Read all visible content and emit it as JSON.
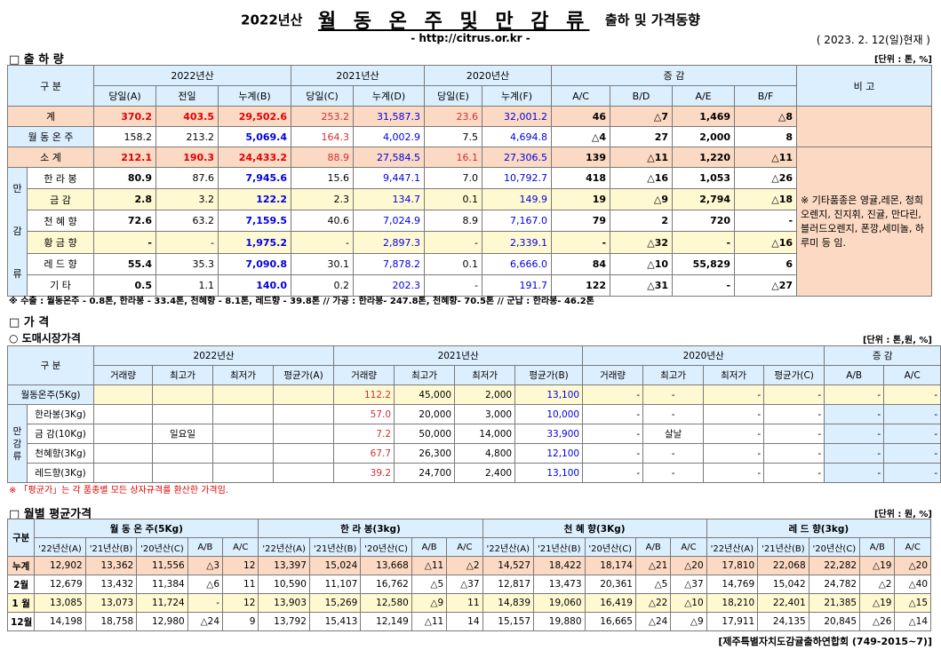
{
  "header": {
    "year": "2022년산",
    "title": "월 동 온 주 및 만 감 류",
    "subtitle": "출하 및 가격동향",
    "url": "- http://citrus.or.kr -",
    "date": "( 2023. 2. 12(일)현재 )"
  },
  "shipment": {
    "section_title": "□ 출 하 량",
    "unit": "[단위 : 톤, %]",
    "head": {
      "gubun": "구 분",
      "y2022": "2022년산",
      "y2021": "2021년산",
      "y2020": "2020년산",
      "change": "증 감",
      "remark": "비 고",
      "cols": [
        "당일(A)",
        "전일",
        "누계(B)",
        "당일(C)",
        "누계(D)",
        "당일(E)",
        "누계(F)",
        "A/C",
        "B/D",
        "A/E",
        "B/F"
      ]
    },
    "rows": [
      {
        "label": "계",
        "v": [
          "370.2",
          "403.5",
          "29,502.6",
          "253.2",
          "31,587.3",
          "23.6",
          "32,001.2",
          "46",
          "△7",
          "1,469",
          "△8"
        ]
      },
      {
        "label": "월 동 온 주",
        "v": [
          "158.2",
          "213.2",
          "5,069.4",
          "164.3",
          "4,002.9",
          "7.5",
          "4,694.8",
          "△4",
          "27",
          "2,000",
          "8"
        ]
      },
      {
        "label": "소 계",
        "v": [
          "212.1",
          "190.3",
          "24,433.2",
          "88.9",
          "27,584.5",
          "16.1",
          "27,306.5",
          "139",
          "△11",
          "1,220",
          "△11"
        ]
      },
      {
        "label": "한 라 봉",
        "v": [
          "80.9",
          "87.6",
          "7,945.6",
          "15.6",
          "9,447.1",
          "7.0",
          "10,792.7",
          "418",
          "△16",
          "1,053",
          "△26"
        ]
      },
      {
        "label": "금 감",
        "v": [
          "2.8",
          "3.2",
          "122.2",
          "2.3",
          "134.7",
          "0.1",
          "149.9",
          "19",
          "△9",
          "2,794",
          "△18"
        ]
      },
      {
        "label": "천 혜 향",
        "v": [
          "72.6",
          "63.2",
          "7,159.5",
          "40.6",
          "7,024.9",
          "8.9",
          "7,167.0",
          "79",
          "2",
          "720",
          "-"
        ]
      },
      {
        "label": "황 금 향",
        "v": [
          "-",
          "-",
          "1,975.2",
          "-",
          "2,897.3",
          "-",
          "2,339.1",
          "-",
          "△32",
          "-",
          "△16"
        ]
      },
      {
        "label": "레 드 향",
        "v": [
          "55.4",
          "35.3",
          "7,090.8",
          "30.1",
          "7,878.2",
          "0.1",
          "6,666.0",
          "84",
          "△10",
          "55,829",
          "6"
        ]
      },
      {
        "label": "기 타",
        "v": [
          "0.5",
          "1.1",
          "140.0",
          "0.2",
          "202.3",
          "-",
          "191.7",
          "122",
          "△31",
          "-",
          "△27"
        ]
      }
    ],
    "group_label": [
      "만",
      "감",
      "류"
    ],
    "remark_text": "※ 기타품종은 영귤,레몬, 청희오렌지, 진지휘, 진귤, 만다린, 블러드오렌지, 폰깡,세미놀, 하루미 등 임.",
    "note": "※ 수출 : 월동온주 - 0.8톤, 한라봉 - 33.4톤, 천혜향 - 8.1톤, 레드향 - 39.8톤 // 가공 : 한라봉- 247.8톤, 천혜향- 70.5톤 // 군납 : 한라봉- 46.2톤"
  },
  "price": {
    "section_title": "□ 가 격",
    "sub_title": "○ 도매시장가격",
    "unit": "[단위 : 톤,원, %]",
    "head": {
      "gubun": "구 분",
      "y2022": "2022년산",
      "y2021": "2021년산",
      "y2020": "2020년산",
      "change": "증 감",
      "cols": [
        "거래량",
        "최고가",
        "최저가",
        "평균가(A)",
        "거래량",
        "최고가",
        "최저가",
        "평균가(B)",
        "거래량",
        "최고가",
        "최저가",
        "평균가(C)",
        "A/B",
        "A/C"
      ]
    },
    "rows": [
      {
        "label": "월동온주(5Kg)",
        "v": [
          "",
          "",
          "",
          "",
          "112.2",
          "45,000",
          "2,000",
          "13,100",
          "-",
          "-",
          "-",
          "-",
          "-",
          "-"
        ]
      },
      {
        "label": "한라봉(3Kg)",
        "v": [
          "",
          "",
          "",
          "",
          "57.0",
          "20,000",
          "3,000",
          "10,000",
          "-",
          "-",
          "-",
          "-",
          "-",
          "-"
        ]
      },
      {
        "label": "금 감(10Kg)",
        "v": [
          "",
          "일요일",
          "",
          "",
          "7.2",
          "50,000",
          "14,000",
          "33,900",
          "-",
          "살날",
          "-",
          "-",
          "-",
          "-"
        ]
      },
      {
        "label": "천혜향(3Kg)",
        "v": [
          "",
          "",
          "",
          "",
          "67.7",
          "26,300",
          "4,800",
          "12,100",
          "-",
          "-",
          "-",
          "-",
          "-",
          "-"
        ]
      },
      {
        "label": "레드향(3Kg)",
        "v": [
          "",
          "",
          "",
          "",
          "39.2",
          "24,700",
          "2,400",
          "13,100",
          "-",
          "-",
          "-",
          "-",
          "-",
          "-"
        ]
      }
    ],
    "group_label": [
      "만",
      "감",
      "류"
    ],
    "note": "※ 「평균가」는 각 품종별 모든 상자규격를 환산한 가격임."
  },
  "monthly": {
    "section_title": "□ 월별 평균가격",
    "unit": "[단위 : 원, %]",
    "head": {
      "gubun": "구분",
      "groups": [
        "월 동 온 주(5Kg)",
        "한 라 봉(3kg)",
        "천 혜 향(3Kg)",
        "레 드 향(3kg)"
      ],
      "cols": [
        "'22년산(A)",
        "'21년산(B)",
        "'20년산(C)",
        "A/B",
        "A/C"
      ]
    },
    "rows": [
      {
        "label": "누계",
        "v": [
          "12,902",
          "13,362",
          "11,556",
          "△3",
          "12",
          "13,397",
          "15,024",
          "13,668",
          "△11",
          "△2",
          "14,527",
          "18,422",
          "18,174",
          "△21",
          "△20",
          "17,810",
          "22,068",
          "22,282",
          "△19",
          "△20"
        ]
      },
      {
        "label": "2월",
        "v": [
          "12,679",
          "13,432",
          "11,384",
          "△6",
          "11",
          "10,590",
          "11,107",
          "16,762",
          "△5",
          "△37",
          "12,817",
          "13,473",
          "20,361",
          "△5",
          "△37",
          "14,769",
          "15,042",
          "24,782",
          "△2",
          "△40"
        ]
      },
      {
        "label": "1 월",
        "v": [
          "13,085",
          "13,073",
          "11,724",
          "-",
          "12",
          "13,903",
          "15,269",
          "12,580",
          "△9",
          "11",
          "14,839",
          "19,060",
          "16,419",
          "△22",
          "△10",
          "18,210",
          "22,401",
          "21,385",
          "△19",
          "△15"
        ]
      },
      {
        "label": "12월",
        "v": [
          "14,198",
          "18,758",
          "12,980",
          "△24",
          "9",
          "13,792",
          "15,413",
          "12,149",
          "△11",
          "14",
          "15,157",
          "19,880",
          "16,665",
          "△24",
          "△9",
          "17,911",
          "24,135",
          "20,845",
          "△26",
          "△14"
        ]
      }
    ]
  },
  "footer": "[제주특별자치도감귤출하연합회 (749-2015~7)]"
}
